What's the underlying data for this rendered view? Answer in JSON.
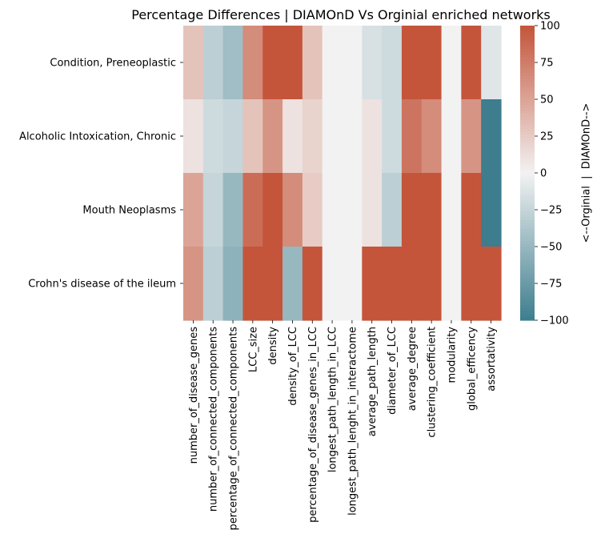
{
  "chart_data": {
    "type": "heatmap",
    "title": "Percentage Differences | DIAMOnD Vs Orginial enriched networks",
    "rows": [
      "Condition, Preneoplastic",
      "Alcoholic Intoxication, Chronic",
      "Mouth Neoplasms",
      "Crohn's disease of the ileum"
    ],
    "columns": [
      "number_of_disease_genes",
      "number_of_connected_components",
      "percentage_of_connected_components",
      "LCC_size",
      "density",
      "density_of_LCC",
      "percentage_of_disease_genes_in_LCC",
      "longest_path_length_in_LCC",
      "longest_path_lenght_in_interactome",
      "average_path_length",
      "diameter_of_LCC",
      "average_degree",
      "clustering_coefficient",
      "modularity",
      "global_efficency",
      "assortativity"
    ],
    "values": [
      [
        30,
        -30,
        -45,
        65,
        100,
        100,
        30,
        0,
        0,
        -15,
        -20,
        100,
        100,
        0,
        100,
        -10
      ],
      [
        10,
        -20,
        -25,
        30,
        60,
        10,
        20,
        0,
        0,
        10,
        -20,
        80,
        65,
        0,
        60,
        -100
      ],
      [
        50,
        -25,
        -50,
        85,
        100,
        65,
        25,
        0,
        0,
        10,
        -30,
        100,
        100,
        0,
        100,
        -100
      ],
      [
        60,
        -30,
        -55,
        100,
        100,
        -50,
        100,
        0,
        0,
        100,
        100,
        100,
        100,
        0,
        100,
        100
      ]
    ],
    "colorbar": {
      "label": "<--Orginial  |  DIAMOnD-->",
      "min": -100,
      "max": 100,
      "ticks": [
        100,
        75,
        50,
        25,
        0,
        -25,
        -50,
        -75,
        -100
      ]
    },
    "colormap": {
      "negative": "#3d7d8e",
      "neutral": "#f2f2f2",
      "positive": "#c4553b"
    }
  }
}
